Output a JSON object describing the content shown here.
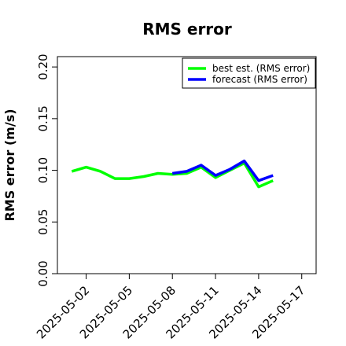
{
  "chart_data": {
    "type": "line",
    "title": "RMS error",
    "ylabel": "RMS error (m/s)",
    "xlabel": "",
    "ylim": [
      0,
      0.21
    ],
    "xlim": [
      "2025-04-30",
      "2025-05-18"
    ],
    "y_ticks": [
      "0.00",
      "0.05",
      "0.10",
      "0.15",
      "0.20"
    ],
    "x_ticks": [
      {
        "label": "2025-05-02",
        "date": "2025-05-02",
        "color": "#000000"
      },
      {
        "label": "2025-05-05",
        "date": "2025-05-05",
        "color": "#000000"
      },
      {
        "label": "2025-05-08",
        "date": "2025-05-08",
        "color": "#228b22"
      },
      {
        "label": "2025-05-11",
        "date": "2025-05-11",
        "color": "#000000"
      },
      {
        "label": "2025-05-14",
        "date": "2025-05-14",
        "color": "#000000"
      },
      {
        "label": "2025-05-17",
        "date": "2025-05-17",
        "color": "#000000"
      }
    ],
    "grid": false,
    "legend_position": "top-right",
    "series": [
      {
        "name": "best est. (RMS error)",
        "color": "#00ff00",
        "points": [
          {
            "x": "2025-05-01",
            "y": 0.099
          },
          {
            "x": "2025-05-02",
            "y": 0.103
          },
          {
            "x": "2025-05-03",
            "y": 0.099
          },
          {
            "x": "2025-05-04",
            "y": 0.092
          },
          {
            "x": "2025-05-05",
            "y": 0.092
          },
          {
            "x": "2025-05-06",
            "y": 0.094
          },
          {
            "x": "2025-05-07",
            "y": 0.097
          },
          {
            "x": "2025-05-08",
            "y": 0.096
          },
          {
            "x": "2025-05-09",
            "y": 0.097
          },
          {
            "x": "2025-05-10",
            "y": 0.103
          },
          {
            "x": "2025-05-11",
            "y": 0.093
          },
          {
            "x": "2025-05-12",
            "y": 0.1
          },
          {
            "x": "2025-05-13",
            "y": 0.107
          },
          {
            "x": "2025-05-14",
            "y": 0.084
          },
          {
            "x": "2025-05-15",
            "y": 0.09
          }
        ]
      },
      {
        "name": "forecast (RMS error)",
        "color": "#0000ff",
        "points": [
          {
            "x": "2025-05-08",
            "y": 0.097
          },
          {
            "x": "2025-05-09",
            "y": 0.099
          },
          {
            "x": "2025-05-10",
            "y": 0.105
          },
          {
            "x": "2025-05-11",
            "y": 0.095
          },
          {
            "x": "2025-05-12",
            "y": 0.101
          },
          {
            "x": "2025-05-13",
            "y": 0.109
          },
          {
            "x": "2025-05-14",
            "y": 0.09
          },
          {
            "x": "2025-05-15",
            "y": 0.095
          }
        ]
      }
    ]
  }
}
